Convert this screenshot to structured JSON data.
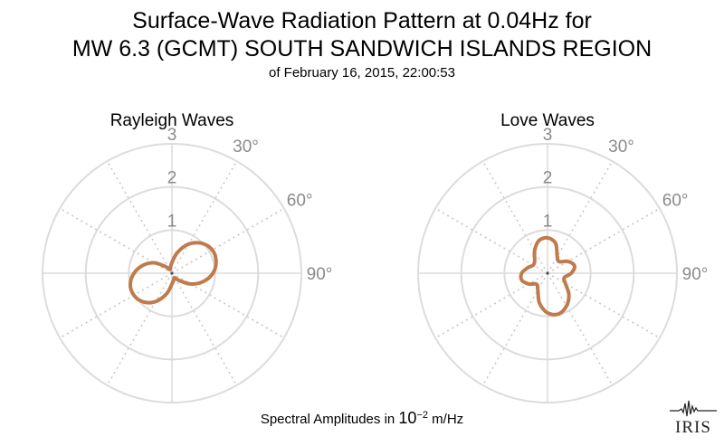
{
  "header": {
    "title_line1": "Surface-Wave Radiation Pattern at 0.04Hz for",
    "title_line2": "MW 6.3 (GCMT) SOUTH SANDWICH ISLANDS REGION",
    "subtitle": "of February 16, 2015, 22:00:53"
  },
  "footer": {
    "label_prefix": "Spectral Amplitudes in ",
    "power_base": "10",
    "power_exponent": "−2",
    "unit": " m/Hz"
  },
  "logo": {
    "text": "IRIS"
  },
  "colors": {
    "pattern": "#c07a4c",
    "grid_solid": "#dcdcdc",
    "grid_dotted": "#c8c8c8",
    "labels": "#8a8a8a"
  },
  "chart_data": [
    {
      "type": "polar-line",
      "title": "Rayleigh Waves",
      "radial_ticks": [
        "1",
        "2",
        "3"
      ],
      "rlim": [
        0,
        3
      ],
      "angle_ticks": [
        "30°",
        "60°",
        "90°"
      ],
      "angle_convention": "clockwise from north (top)",
      "grid": true,
      "series": [
        {
          "theta_deg": [
            0,
            15,
            30,
            45,
            60,
            75,
            90,
            105,
            120,
            135,
            150,
            165,
            180,
            195,
            210,
            225,
            240,
            255,
            270,
            285,
            300,
            315,
            330,
            345
          ],
          "r": [
            0.25,
            0.5,
            0.78,
            0.98,
            1.08,
            1.06,
            0.95,
            0.75,
            0.5,
            0.24,
            0.12,
            0.16,
            0.25,
            0.5,
            0.76,
            0.94,
            1.02,
            1.0,
            0.88,
            0.7,
            0.48,
            0.22,
            0.1,
            0.14
          ]
        }
      ]
    },
    {
      "type": "polar-line",
      "title": "Love Waves",
      "radial_ticks": [
        "1",
        "2",
        "3"
      ],
      "rlim": [
        0,
        3
      ],
      "angle_ticks": [
        "30°",
        "60°",
        "90°"
      ],
      "angle_convention": "clockwise from north (top)",
      "grid": true,
      "series": [
        {
          "theta_deg": [
            0,
            15,
            30,
            45,
            60,
            75,
            90,
            105,
            120,
            135,
            150,
            165,
            180,
            195,
            210,
            225,
            240,
            255,
            270,
            285,
            300,
            315,
            330,
            345
          ],
          "r": [
            0.82,
            0.72,
            0.45,
            0.38,
            0.55,
            0.65,
            0.55,
            0.4,
            0.48,
            0.7,
            0.88,
            0.98,
            0.92,
            0.72,
            0.45,
            0.36,
            0.5,
            0.62,
            0.6,
            0.48,
            0.38,
            0.42,
            0.6,
            0.78
          ]
        }
      ]
    }
  ]
}
